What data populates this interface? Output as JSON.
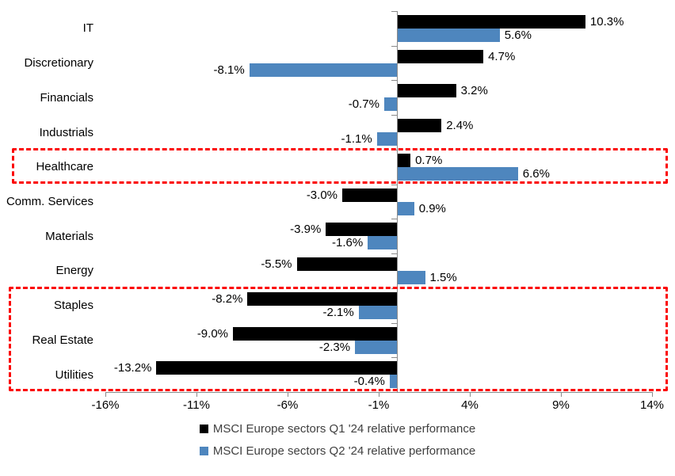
{
  "chart_data": {
    "type": "bar",
    "orientation": "horizontal",
    "title": "",
    "categories": [
      "IT",
      "Discretionary",
      "Financials",
      "Industrials",
      "Healthcare",
      "Comm. Services",
      "Materials",
      "Energy",
      "Staples",
      "Real Estate",
      "Utilities"
    ],
    "series": [
      {
        "name": "MSCI Europe sectors Q1 '24 relative performance",
        "color": "#000000",
        "values": [
          10.3,
          4.7,
          3.2,
          2.4,
          0.7,
          -3.0,
          -3.9,
          -5.5,
          -8.2,
          -9.0,
          -13.2
        ],
        "labels": [
          "10.3%",
          "4.7%",
          "3.2%",
          "2.4%",
          "0.7%",
          "-3.0%",
          "-3.9%",
          "-5.5%",
          "-8.2%",
          "-9.0%",
          "-13.2%"
        ]
      },
      {
        "name": "MSCI Europe sectors Q2 '24 relative performance",
        "color": "#4e86be",
        "values": [
          5.6,
          -8.1,
          -0.7,
          -1.1,
          6.6,
          0.9,
          -1.6,
          1.5,
          -2.1,
          -2.3,
          -0.4
        ],
        "labels": [
          "5.6%",
          "-8.1%",
          "-0.7%",
          "-1.1%",
          "6.6%",
          "0.9%",
          "-1.6%",
          "1.5%",
          "-2.1%",
          "-2.3%",
          "-0.4%"
        ]
      }
    ],
    "x_axis": {
      "tick_labels": [
        "-16%",
        "-11%",
        "-6%",
        "-1%",
        "4%",
        "9%",
        "14%"
      ],
      "tick_values": [
        -16,
        -11,
        -6,
        -1,
        4,
        9,
        14
      ],
      "range": [
        -16,
        14
      ]
    },
    "grid": false,
    "legend_position": "bottom",
    "data_labels": "outside-end",
    "highlights": [
      {
        "categories": [
          "Healthcare"
        ],
        "style": "red-dashed-box"
      },
      {
        "categories": [
          "Staples",
          "Real Estate",
          "Utilities"
        ],
        "style": "red-dashed-box"
      }
    ],
    "highlight_color": "#fb0505"
  },
  "colors": {
    "series_q1": "#000000",
    "series_q2": "#4e86be",
    "axis": "#8a8a8a",
    "highlight_box": "#fb0505",
    "legend_text": "#404040",
    "background": "#ffffff"
  }
}
